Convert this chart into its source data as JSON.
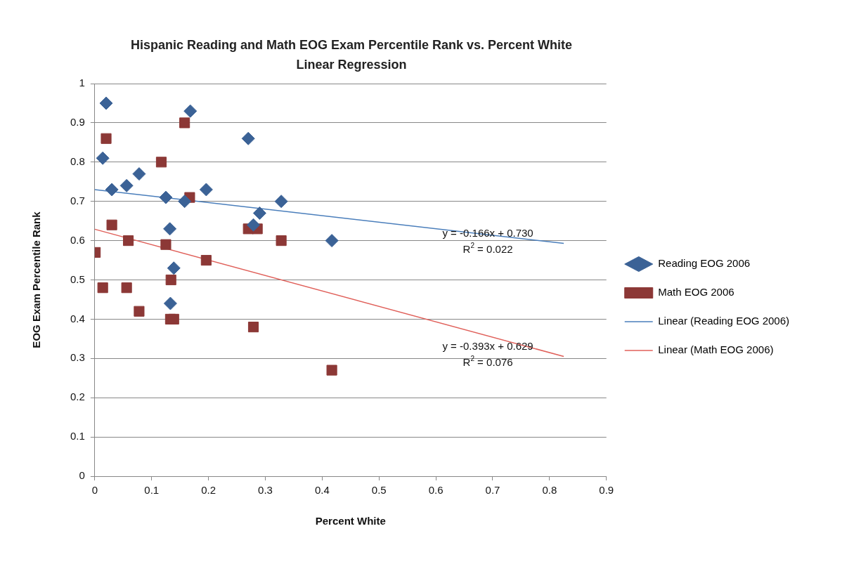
{
  "chart_data": {
    "type": "scatter",
    "title": "Hispanic Reading and Math EOG Exam Percentile Rank vs. Percent White Linear Regression",
    "xlabel": "Percent White",
    "ylabel": "EOG Exam Percentile Rank",
    "xlim": [
      0,
      0.9
    ],
    "xticks": [
      0,
      0.1,
      0.2,
      0.3,
      0.4,
      0.5,
      0.6,
      0.7,
      0.8,
      0.9
    ],
    "ylim": [
      0,
      1
    ],
    "yticks": [
      0,
      0.1,
      0.2,
      0.3,
      0.4,
      0.5,
      0.6,
      0.7,
      0.8,
      0.9,
      1
    ],
    "grid": "y",
    "legend": "right",
    "series": [
      {
        "name": "Reading EOG 2006",
        "type": "scatter",
        "marker": "diamond",
        "color": "#3b6296",
        "x": [
          0.02,
          0.168,
          0.27,
          0.014,
          0.078,
          0.03,
          0.056,
          0.125,
          0.158,
          0.196,
          0.29,
          0.328,
          0.279,
          0.417,
          0.132,
          0.139,
          0.133
        ],
        "values": [
          0.95,
          0.93,
          0.86,
          0.81,
          0.77,
          0.73,
          0.74,
          0.71,
          0.7,
          0.73,
          0.67,
          0.7,
          0.64,
          0.6,
          0.63,
          0.53,
          0.44
        ]
      },
      {
        "name": "Math EOG 2006",
        "type": "scatter",
        "marker": "square",
        "color": "#8c3836",
        "x": [
          0.158,
          0.02,
          0.117,
          0.167,
          0.03,
          0.001,
          0.059,
          0.125,
          0.196,
          0.014,
          0.056,
          0.134,
          0.078,
          0.133,
          0.139,
          0.27,
          0.286,
          0.279,
          0.328,
          0.417
        ],
        "values": [
          0.9,
          0.86,
          0.8,
          0.71,
          0.64,
          0.57,
          0.6,
          0.59,
          0.55,
          0.48,
          0.48,
          0.5,
          0.42,
          0.4,
          0.4,
          0.63,
          0.63,
          0.38,
          0.6,
          0.27
        ]
      },
      {
        "name": "Linear (Reading EOG 2006)",
        "type": "line",
        "marker": "none",
        "color": "#4a7ebb",
        "x": [
          0,
          0.825
        ],
        "values": [
          0.73,
          0.593
        ]
      },
      {
        "name": "Linear (Math EOG 2006)",
        "type": "line",
        "marker": "none",
        "color": "#e0605a",
        "x": [
          0,
          0.825
        ],
        "values": [
          0.629,
          0.305
        ]
      }
    ],
    "annotations": [
      "y = -0.166x + 0.730",
      "R$^{2}$ = 0.022",
      "y = -0.393x + 0.629",
      "R$^{2}$ = 0.076"
    ]
  }
}
